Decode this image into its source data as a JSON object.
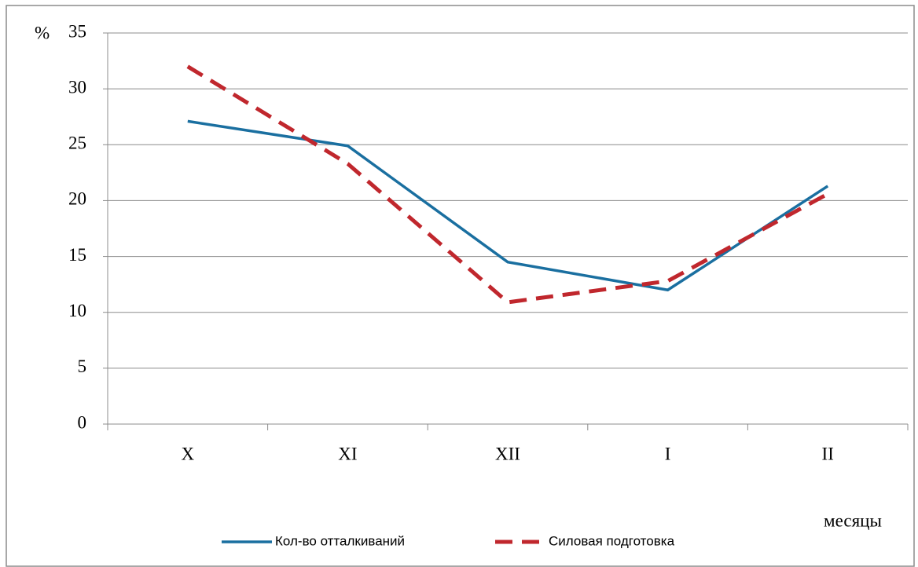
{
  "chart_data": {
    "type": "line",
    "categories": [
      "X",
      "XI",
      "XII",
      "I",
      "II"
    ],
    "series": [
      {
        "name": "Кол-во отталкиваний",
        "color": "#1a6fa0",
        "style": "solid",
        "values": [
          27.1,
          24.9,
          14.5,
          12.0,
          21.3
        ]
      },
      {
        "name": "Силовая подготовка",
        "color": "#c0272d",
        "style": "dashed",
        "values": [
          32.0,
          23.3,
          10.9,
          12.8,
          20.6
        ]
      }
    ],
    "ylabel": "%",
    "xlabel": "месяцы",
    "ylim": [
      0,
      35
    ],
    "yticks": [
      0,
      5,
      10,
      15,
      20,
      25,
      30,
      35
    ],
    "grid": true,
    "legend": "bottom"
  }
}
